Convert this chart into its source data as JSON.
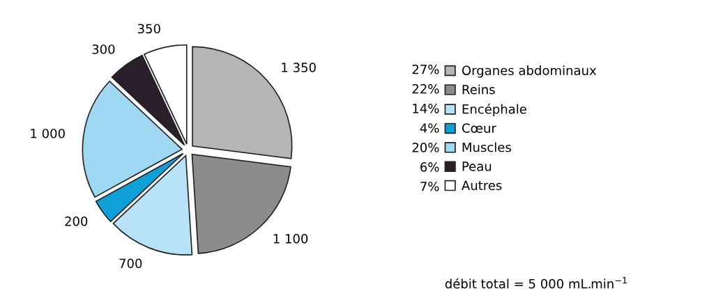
{
  "chart_data": {
    "type": "pie",
    "categories": [
      "Organes abdominaux",
      "Reins",
      "Encéphale",
      "Cœur",
      "Muscles",
      "Peau",
      "Autres"
    ],
    "values": [
      1350,
      1100,
      700,
      200,
      1000,
      300,
      350
    ],
    "value_labels": [
      "1 350",
      "1 100",
      "700",
      "200",
      "1 000",
      "300",
      "350"
    ],
    "colors": [
      "#b5b5b5",
      "#8c8c8c",
      "#b8e2f5",
      "#0fa0d8",
      "#9fd8f2",
      "#2a1f2a",
      "#ffffff"
    ],
    "annotations": [
      "27%",
      "22%",
      "14%",
      "4%",
      "20%",
      "6%",
      "7%",
      "débit total = 5 000 mL.min$^{−1}$"
    ],
    "legend": "right"
  }
}
